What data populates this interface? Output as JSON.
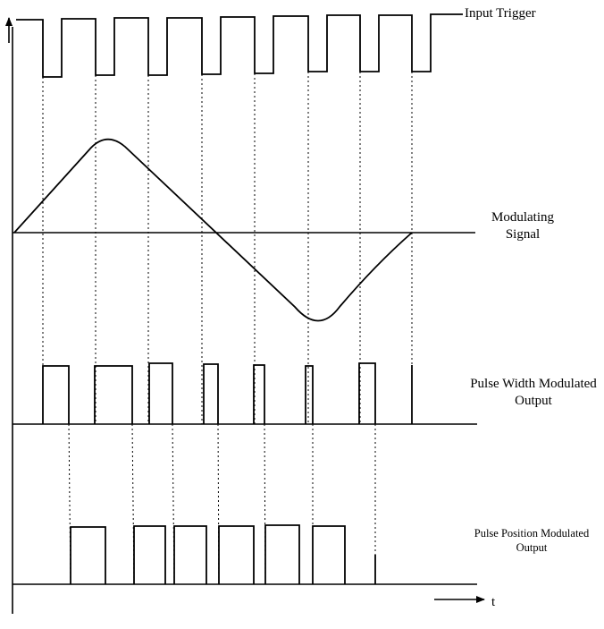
{
  "labels": {
    "input_trigger": "Input Trigger",
    "modulating_line1": "Modulating",
    "modulating_line2": "Signal",
    "pwm_line1": "Pulse Width Modulated",
    "pwm_line2": "Output",
    "ppm_line1": "Pulse Position Modulated",
    "ppm_line2": "Output",
    "time_axis": "t"
  },
  "colors": {
    "stroke": "#000000",
    "background": "#ffffff"
  }
}
